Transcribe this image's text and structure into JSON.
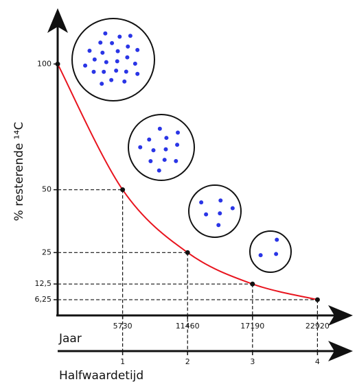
{
  "chart_data": {
    "type": "line",
    "y_label": "% resterende ¹⁴C",
    "x_label": "Jaar",
    "x2_label": "Halfwaardetijd",
    "x": [
      0,
      5730,
      11460,
      17190,
      22920
    ],
    "values": [
      100,
      50,
      25,
      12.5,
      6.25
    ],
    "color": "#e8141e",
    "xlim": [
      0,
      25500
    ],
    "xticks": [
      5730,
      11460,
      17190,
      22920
    ],
    "x2lim": [
      0,
      4.45
    ],
    "x2ticks": [
      1,
      2,
      3,
      4
    ],
    "ylim": [
      0,
      120
    ],
    "yticks": [
      100,
      50,
      25,
      {
        "value": 12.5,
        "label": "12,5"
      },
      {
        "value": 6.25,
        "label": "6,25"
      }
    ]
  }
}
